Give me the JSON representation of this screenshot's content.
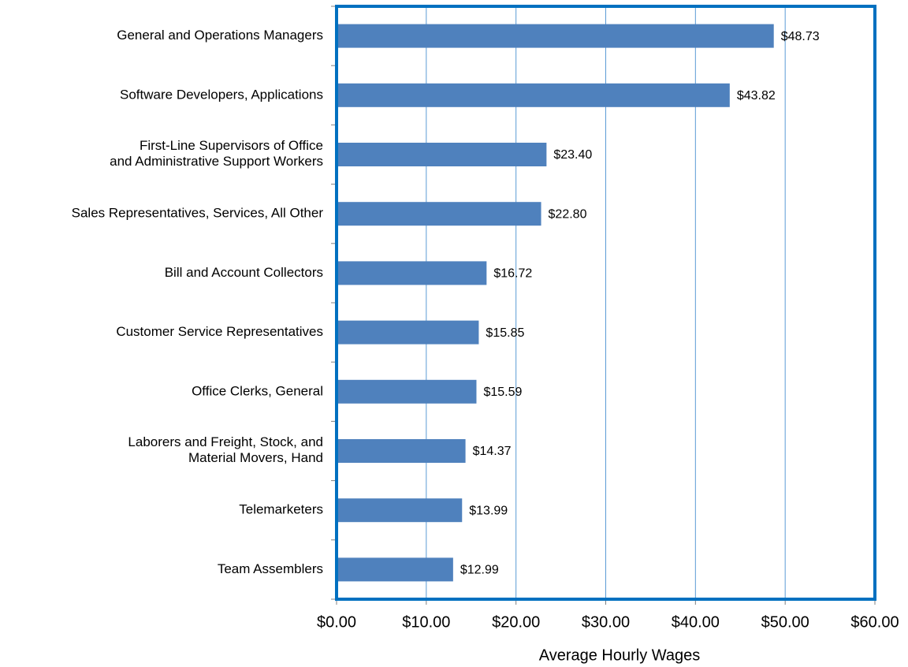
{
  "chart_data": {
    "type": "barh",
    "categories": [
      "General and Operations Managers",
      "Software Developers, Applications",
      "First-Line Supervisors of Office\nand Administrative Support Workers",
      "Sales Representatives, Services, All Other",
      "Bill and Account Collectors",
      "Customer Service Representatives",
      "Office Clerks, General",
      "Laborers and Freight, Stock, and\nMaterial Movers, Hand",
      "Telemarketers",
      "Team Assemblers"
    ],
    "values": [
      48.73,
      43.82,
      23.4,
      22.8,
      16.72,
      15.85,
      15.59,
      14.37,
      13.99,
      12.99
    ],
    "value_labels": [
      "$48.73",
      "$43.82",
      "$23.40",
      "$22.80",
      "$16.72",
      "$15.85",
      "$15.59",
      "$14.37",
      "$13.99",
      "$12.99"
    ],
    "color": "#4f81bd",
    "xlabel": "Average Hourly Wages",
    "xlim": [
      0,
      60
    ],
    "xticks": [
      {
        "value": 0,
        "label": "$0.00"
      },
      {
        "value": 10,
        "label": "$10.00"
      },
      {
        "value": 20,
        "label": "$20.00"
      },
      {
        "value": 30,
        "label": "$30.00"
      },
      {
        "value": 40,
        "label": "$40.00"
      },
      {
        "value": 50,
        "label": "$50.00"
      },
      {
        "value": 60,
        "label": "$60.00"
      }
    ],
    "grid": true
  }
}
